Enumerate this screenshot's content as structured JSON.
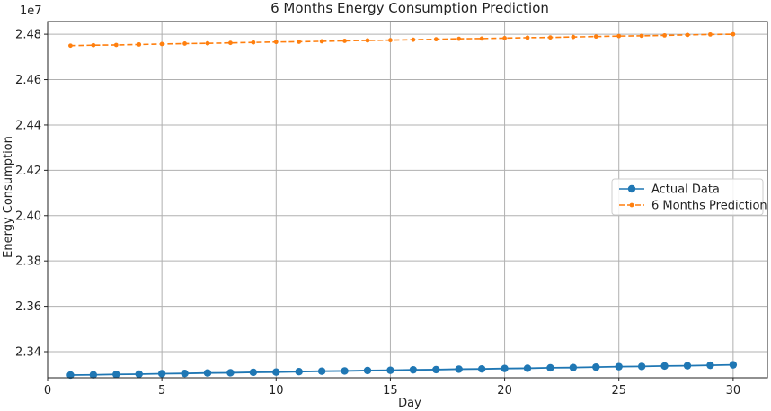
{
  "chart_data": {
    "type": "line",
    "title": "6 Months Energy Consumption Prediction",
    "xlabel": "Day",
    "ylabel": "Energy Consumption",
    "y_offset_label": "1e7",
    "xlim": [
      0,
      31.5
    ],
    "ylim": [
      2.3285,
      2.4856
    ],
    "y_scale_note": "values in units of 1e7",
    "x_ticks": [
      0,
      5,
      10,
      15,
      20,
      25,
      30
    ],
    "x_tick_labels": [
      "0",
      "5",
      "10",
      "15",
      "20",
      "25",
      "30"
    ],
    "y_ticks": [
      2.34,
      2.36,
      2.38,
      2.4,
      2.42,
      2.44,
      2.46,
      2.48
    ],
    "y_tick_labels": [
      "2.34",
      "2.36",
      "2.38",
      "2.40",
      "2.42",
      "2.44",
      "2.46",
      "2.48"
    ],
    "grid": true,
    "legend_position": "center-right",
    "x": [
      1,
      2,
      3,
      4,
      5,
      6,
      7,
      8,
      9,
      10,
      11,
      12,
      13,
      14,
      15,
      16,
      17,
      18,
      19,
      20,
      21,
      22,
      23,
      24,
      25,
      26,
      27,
      28,
      29,
      30
    ],
    "series": [
      {
        "name": "Actual Data",
        "color": "#1f77b4",
        "style": "solid",
        "marker": "circle",
        "values": [
          2.3297,
          2.3298,
          2.33,
          2.3301,
          2.3303,
          2.3304,
          2.3306,
          2.3307,
          2.3309,
          2.331,
          2.3312,
          2.3314,
          2.3315,
          2.3317,
          2.3318,
          2.332,
          2.3321,
          2.3323,
          2.3324,
          2.3326,
          2.3327,
          2.3329,
          2.333,
          2.3332,
          2.3334,
          2.3335,
          2.3337,
          2.3338,
          2.334,
          2.3342
        ]
      },
      {
        "name": "6 Months Prediction",
        "color": "#ff7f0e",
        "style": "dashed",
        "marker": "dot",
        "values": [
          2.475,
          2.4752,
          2.4753,
          2.4755,
          2.4757,
          2.4759,
          2.476,
          2.4762,
          2.4764,
          2.4766,
          2.4767,
          2.4769,
          2.4771,
          2.4773,
          2.4774,
          2.4776,
          2.4778,
          2.478,
          2.4781,
          2.4783,
          2.4785,
          2.4786,
          2.4788,
          2.479,
          2.4792,
          2.4793,
          2.4795,
          2.4797,
          2.4799,
          2.48
        ]
      }
    ]
  }
}
